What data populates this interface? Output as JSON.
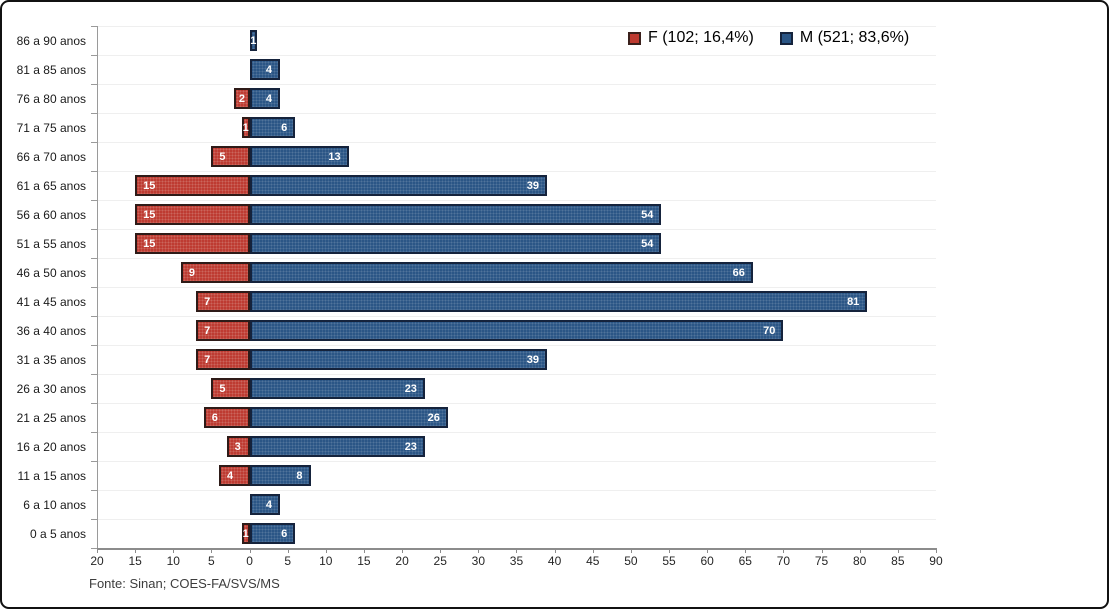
{
  "footer": {
    "source": "Fonte: Sinan; COES-FA/SVS/MS"
  },
  "legend": {
    "items": [
      {
        "label": "F (102; 16,4%)",
        "color": "#bd3a30",
        "border": "#3a201c"
      },
      {
        "label": "M (521; 83,6%)",
        "color": "#2a5585",
        "border": "#15233c"
      }
    ]
  },
  "chart_data": {
    "type": "bar",
    "subtype": "diverging-horizontal-age-pyramid",
    "title": "",
    "xlabel": "",
    "ylabel": "",
    "grid": "horizontal-light",
    "legend_position": "top-right",
    "categories": [
      "86 a 90 anos",
      "81 a 85 anos",
      "76 a 80 anos",
      "71 a 75 anos",
      "66 a 70 anos",
      "61 a 65 anos",
      "56 a 60 anos",
      "51 a 55 anos",
      "46 a 50 anos",
      "41 a 45 anos",
      "36 a 40 anos",
      "31 a 35 anos",
      "26 a 30 anos",
      "21 a 25 anos",
      "16 a 20 anos",
      "11 a 15 anos",
      "6 a 10 anos",
      "0 a 5 anos"
    ],
    "series": [
      {
        "name": "F (102; 16,4%)",
        "direction": "left",
        "color": "#bd3a30",
        "values": [
          0,
          0,
          2,
          1,
          5,
          15,
          15,
          15,
          9,
          7,
          7,
          7,
          5,
          6,
          3,
          4,
          0,
          1
        ],
        "total": 102,
        "percent": "16,4%"
      },
      {
        "name": "M (521; 83,6%)",
        "direction": "right",
        "color": "#2a5585",
        "values": [
          1,
          4,
          4,
          6,
          13,
          39,
          54,
          54,
          66,
          81,
          70,
          39,
          23,
          26,
          23,
          8,
          4,
          6
        ],
        "total": 521,
        "percent": "83,6%"
      }
    ],
    "x_axis": {
      "min": -20,
      "max": 90,
      "tick_step": 5,
      "ticks": [
        -20,
        -15,
        -10,
        -5,
        0,
        5,
        10,
        15,
        20,
        25,
        30,
        35,
        40,
        45,
        50,
        55,
        60,
        65,
        70,
        75,
        80,
        85,
        90
      ],
      "tick_label_style": "absolute-value"
    }
  }
}
